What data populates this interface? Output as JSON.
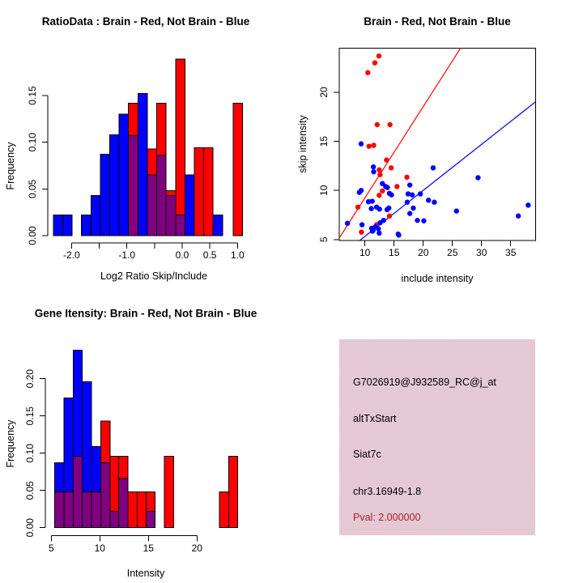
{
  "colors": {
    "red": "#ff0000",
    "blue": "#0000ff",
    "overlap_purple": "#800080",
    "pval_red": "#a2242e",
    "pink_box_light": "#f2c6d0",
    "pink_box_dark": "#d6ccd8",
    "axis": "#000000"
  },
  "info_box": {
    "probe_id": "G7026919@J932589_RC@j_at",
    "event_type": "altTxStart",
    "gene": "Siat7c",
    "locus": "chr3.16949-1.8",
    "pval": "Pval: 2.000000"
  },
  "chart_data": [
    {
      "id": "ratio_hist",
      "type": "bar",
      "subtype": "overlaid-histogram",
      "title": "RatioData : Brain - Red, Not Brain - Blue",
      "xlabel": "Log2 Ratio Skip/Include",
      "ylabel": "Frequency",
      "series_legend": {
        "red": "Brain",
        "blue": "Not Brain",
        "purple": "overlap"
      },
      "xlim": [
        -2.45,
        1.15
      ],
      "ylim": [
        0,
        0.19
      ],
      "grid": false,
      "x_ticks": [
        {
          "v": -2.0,
          "label": "-2.0"
        },
        {
          "v": -1.5,
          "label": ""
        },
        {
          "v": -1.0,
          "label": "-1.0"
        },
        {
          "v": -0.5,
          "label": ""
        },
        {
          "v": 0.0,
          "label": "0.0"
        },
        {
          "v": 0.5,
          "label": "0.5"
        },
        {
          "v": 1.0,
          "label": "1.0"
        }
      ],
      "y_ticks": [
        {
          "v": 0.0,
          "label": "0.00"
        },
        {
          "v": 0.05,
          "label": "0.05"
        },
        {
          "v": 0.1,
          "label": "0.10"
        },
        {
          "v": 0.15,
          "label": "0.15"
        }
      ],
      "columns": [
        {
          "x0": -2.33,
          "x1": -2.16,
          "overlap": 0,
          "top": 0.022,
          "color": "blue"
        },
        {
          "x0": -2.16,
          "x1": -1.99,
          "overlap": 0,
          "top": 0.022,
          "color": "blue"
        },
        {
          "x0": -1.82,
          "x1": -1.65,
          "overlap": 0,
          "top": 0.022,
          "color": "blue"
        },
        {
          "x0": -1.65,
          "x1": -1.48,
          "overlap": 0,
          "top": 0.043,
          "color": "blue"
        },
        {
          "x0": -1.48,
          "x1": -1.31,
          "overlap": 0,
          "top": 0.087,
          "color": "blue"
        },
        {
          "x0": -1.31,
          "x1": -1.14,
          "overlap": 0,
          "top": 0.108,
          "color": "blue"
        },
        {
          "x0": -1.14,
          "x1": -0.97,
          "overlap": 0,
          "top": 0.13,
          "color": "blue"
        },
        {
          "x0": -0.97,
          "x1": -0.8,
          "overlap": 0.107,
          "top": 0.142,
          "color": "red"
        },
        {
          "x0": -0.8,
          "x1": -0.63,
          "overlap": 0,
          "top": 0.152,
          "color": "blue"
        },
        {
          "x0": -0.63,
          "x1": -0.46,
          "overlap": 0.065,
          "top": 0.093,
          "color": "red"
        },
        {
          "x0": -0.46,
          "x1": -0.29,
          "overlap": 0.086,
          "top": 0.142,
          "color": "red"
        },
        {
          "x0": -0.29,
          "x1": -0.12,
          "overlap": 0.043,
          "top": 0.048,
          "color": "red"
        },
        {
          "x0": -0.12,
          "x1": 0.05,
          "overlap": 0.022,
          "top": 0.189,
          "color": "red"
        },
        {
          "x0": 0.05,
          "x1": 0.22,
          "overlap": 0,
          "top": 0.065,
          "color": "blue"
        },
        {
          "x0": 0.22,
          "x1": 0.39,
          "overlap": 0,
          "top": 0.094,
          "color": "red"
        },
        {
          "x0": 0.39,
          "x1": 0.56,
          "overlap": 0,
          "top": 0.094,
          "color": "red"
        },
        {
          "x0": 0.56,
          "x1": 0.73,
          "overlap": 0,
          "top": 0.022,
          "color": "blue"
        },
        {
          "x0": 0.92,
          "x1": 1.09,
          "overlap": 0,
          "top": 0.142,
          "color": "red"
        }
      ]
    },
    {
      "id": "scatter",
      "type": "scatter",
      "title": "Brain - Red, Not Brain - Blue",
      "xlabel": "include intensity",
      "ylabel": "skip intensity",
      "xlim": [
        5.6,
        39.3
      ],
      "ylim": [
        4.9,
        24.5
      ],
      "grid": false,
      "boxed": true,
      "x_ticks": [
        {
          "v": 10,
          "label": "10"
        },
        {
          "v": 15,
          "label": "15"
        },
        {
          "v": 20,
          "label": "20"
        },
        {
          "v": 25,
          "label": "25"
        },
        {
          "v": 30,
          "label": "30"
        },
        {
          "v": 35,
          "label": "35"
        }
      ],
      "y_ticks": [
        {
          "v": 5,
          "label": "5"
        },
        {
          "v": 10,
          "label": "10"
        },
        {
          "v": 15,
          "label": "15"
        },
        {
          "v": 20,
          "label": "20"
        }
      ],
      "series": [
        {
          "name": "Brain",
          "color": "red",
          "points": [
            [
              12.4,
              23.7
            ],
            [
              11.7,
              23.0
            ],
            [
              10.5,
              22.0
            ],
            [
              12.1,
              16.7
            ],
            [
              14.3,
              16.7
            ],
            [
              10.7,
              14.5
            ],
            [
              11.5,
              14.6
            ],
            [
              13.7,
              13.1
            ],
            [
              12.45,
              12.1
            ],
            [
              12.6,
              11.6
            ],
            [
              14.5,
              12.3
            ],
            [
              17.2,
              11.35
            ],
            [
              15.5,
              10.4
            ],
            [
              13.0,
              9.95
            ],
            [
              12.45,
              9.5
            ],
            [
              8.8,
              8.3
            ],
            [
              14.2,
              7.4
            ],
            [
              12.0,
              6.5
            ],
            [
              9.4,
              5.75
            ]
          ]
        },
        {
          "name": "Not Brain",
          "color": "blue",
          "points": [
            [
              9.35,
              14.75
            ],
            [
              11.45,
              12.4
            ],
            [
              11.5,
              11.9
            ],
            [
              21.7,
              12.3
            ],
            [
              29.4,
              11.3
            ],
            [
              13.0,
              10.7
            ],
            [
              13.55,
              10.4
            ],
            [
              17.7,
              10.55
            ],
            [
              9.35,
              10.0
            ],
            [
              13.85,
              10.3
            ],
            [
              9.05,
              9.8
            ],
            [
              14.2,
              9.7
            ],
            [
              14.55,
              9.55
            ],
            [
              17.4,
              9.65
            ],
            [
              18.1,
              9.55
            ],
            [
              19.5,
              9.65
            ],
            [
              11.25,
              8.9
            ],
            [
              17.25,
              8.8
            ],
            [
              20.9,
              9.0
            ],
            [
              21.9,
              8.8
            ],
            [
              10.6,
              8.85
            ],
            [
              12.0,
              8.3
            ],
            [
              11.1,
              8.15
            ],
            [
              12.5,
              8.1
            ],
            [
              13.8,
              8.05
            ],
            [
              14.1,
              8.2
            ],
            [
              18.3,
              8.2
            ],
            [
              25.7,
              7.9
            ],
            [
              38.0,
              8.5
            ],
            [
              36.3,
              7.4
            ],
            [
              17.7,
              7.65
            ],
            [
              7.0,
              6.65
            ],
            [
              9.5,
              6.5
            ],
            [
              12.6,
              6.7
            ],
            [
              13.2,
              6.95
            ],
            [
              19.0,
              6.95
            ],
            [
              20.1,
              6.9
            ],
            [
              11.15,
              6.15
            ],
            [
              12.3,
              6.1
            ],
            [
              11.8,
              6.3
            ],
            [
              11.4,
              5.95
            ],
            [
              12.45,
              5.65
            ],
            [
              11.3,
              5.85
            ],
            [
              15.7,
              5.55
            ],
            [
              15.8,
              5.45
            ]
          ]
        }
      ],
      "lines": [
        {
          "color": "red",
          "from": [
            5.6,
            5.15
          ],
          "to": [
            26.4,
            24.5
          ]
        },
        {
          "color": "blue",
          "from": [
            9.1,
            4.9
          ],
          "to": [
            39.3,
            19.05
          ]
        }
      ]
    },
    {
      "id": "gene_hist",
      "type": "bar",
      "subtype": "overlaid-histogram",
      "title": "Gene Itensity: Brain - Red, Not Brain - Blue",
      "xlabel": "Intensity",
      "ylabel": "Frequency",
      "series_legend": {
        "red": "Brain",
        "blue": "Not Brain",
        "purple": "overlap"
      },
      "xlim": [
        4.2,
        24.9
      ],
      "ylim": [
        0,
        0.245
      ],
      "grid": false,
      "x_ticks": [
        {
          "v": 5,
          "label": "5"
        },
        {
          "v": 10,
          "label": "10"
        },
        {
          "v": 15,
          "label": "15"
        },
        {
          "v": 20,
          "label": "20"
        }
      ],
      "y_ticks": [
        {
          "v": 0.0,
          "label": "0.00"
        },
        {
          "v": 0.05,
          "label": "0.05"
        },
        {
          "v": 0.1,
          "label": "0.10"
        },
        {
          "v": 0.15,
          "label": "0.15"
        },
        {
          "v": 0.2,
          "label": "0.20"
        }
      ],
      "columns": [
        {
          "x0": 5.36,
          "x1": 6.3,
          "overlap": 0.048,
          "top": 0.087,
          "color": "blue"
        },
        {
          "x0": 6.3,
          "x1": 7.25,
          "overlap": 0.048,
          "top": 0.174,
          "color": "blue"
        },
        {
          "x0": 7.25,
          "x1": 8.2,
          "overlap": 0.096,
          "top": 0.238,
          "color": "blue"
        },
        {
          "x0": 8.2,
          "x1": 9.15,
          "overlap": 0.048,
          "top": 0.196,
          "color": "blue"
        },
        {
          "x0": 9.15,
          "x1": 10.1,
          "overlap": 0.048,
          "top": 0.109,
          "color": "blue"
        },
        {
          "x0": 10.1,
          "x1": 11.05,
          "overlap": 0.087,
          "top": 0.143,
          "color": "red"
        },
        {
          "x0": 11.05,
          "x1": 11.95,
          "overlap": 0.022,
          "top": 0.096,
          "color": "red"
        },
        {
          "x0": 11.95,
          "x1": 12.9,
          "overlap": 0.066,
          "top": 0.096,
          "color": "red"
        },
        {
          "x0": 12.9,
          "x1": 13.85,
          "overlap": 0,
          "top": 0.048,
          "color": "red"
        },
        {
          "x0": 13.85,
          "x1": 14.75,
          "overlap": 0,
          "top": 0.048,
          "color": "red"
        },
        {
          "x0": 14.75,
          "x1": 15.7,
          "overlap": 0.022,
          "top": 0.048,
          "color": "red"
        },
        {
          "x0": 16.65,
          "x1": 17.6,
          "overlap": 0,
          "top": 0.096,
          "color": "red"
        },
        {
          "x0": 22.3,
          "x1": 23.25,
          "overlap": 0,
          "top": 0.048,
          "color": "red"
        },
        {
          "x0": 23.25,
          "x1": 24.2,
          "overlap": 0,
          "top": 0.096,
          "color": "red"
        }
      ]
    }
  ]
}
